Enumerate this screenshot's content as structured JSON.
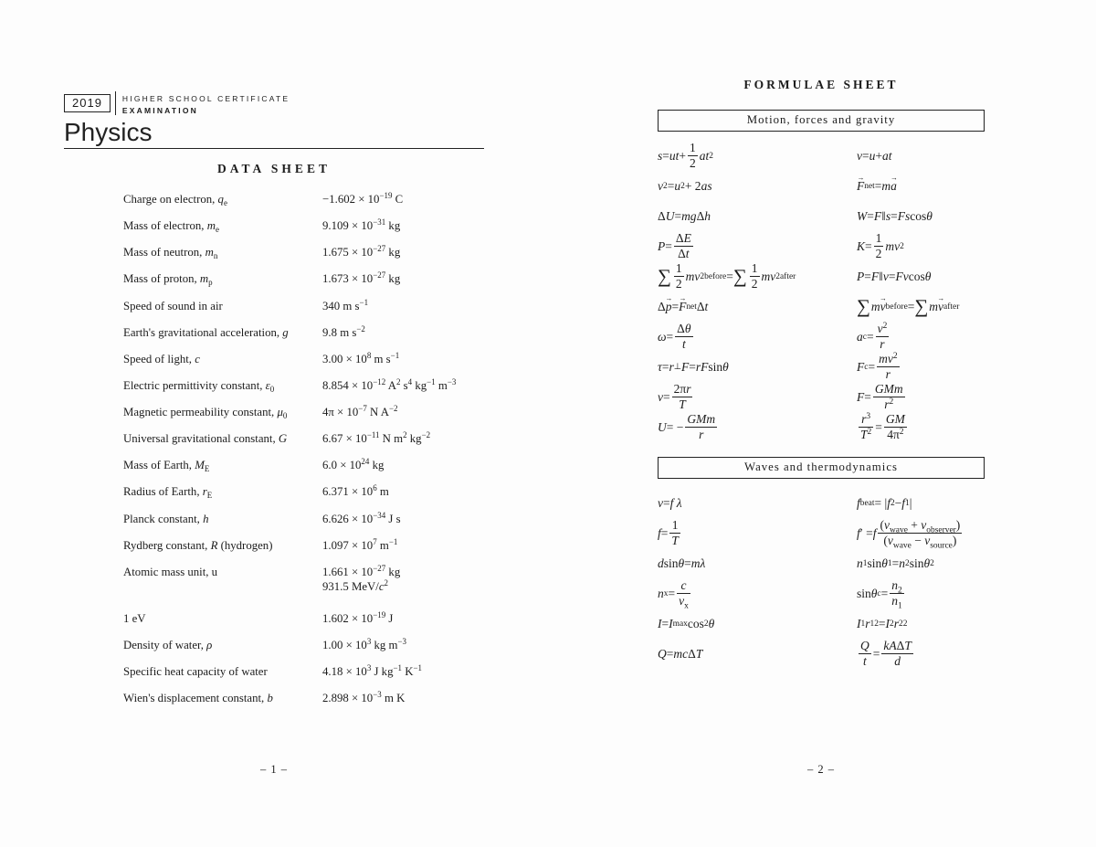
{
  "header": {
    "year": "2019",
    "cert_line1": "HIGHER SCHOOL CERTIFICATE",
    "cert_line2": "EXAMINATION",
    "subject": "Physics"
  },
  "datasheet": {
    "title": "DATA SHEET",
    "rows": [
      {
        "label": "Charge on electron, <i>q</i><sub>e</sub>",
        "value": "−1.602 × 10<sup>−19</sup> C"
      },
      {
        "label": "Mass of electron, <i>m</i><sub>e</sub>",
        "value": "9.109 × 10<sup>−31</sup> kg"
      },
      {
        "label": "Mass of neutron, <i>m</i><sub>n</sub>",
        "value": "1.675 × 10<sup>−27</sup> kg"
      },
      {
        "label": "Mass of proton, <i>m</i><sub>p</sub>",
        "value": "1.673 × 10<sup>−27</sup> kg"
      },
      {
        "label": "Speed of sound in air",
        "value": "340 m s<sup>−1</sup>"
      },
      {
        "label": "Earth's gravitational acceleration, <i>g</i>",
        "value": "9.8 m s<sup>−2</sup>"
      },
      {
        "label": "Speed of light, <i>c</i>",
        "value": "3.00 × 10<sup>8</sup> m s<sup>−1</sup>"
      },
      {
        "label": "Electric permittivity constant, <i>ε</i><sub>0</sub>",
        "value": "8.854 × 10<sup>−12</sup> A<sup>2</sup> s<sup>4</sup> kg<sup>−1</sup> m<sup>−3</sup>"
      },
      {
        "label": "Magnetic permeability constant, <i>μ</i><sub>0</sub>",
        "value": "4π × 10<sup>−7</sup> N A<sup>−2</sup>"
      },
      {
        "label": "Universal gravitational constant, <i>G</i>",
        "value": "6.67 × 10<sup>−11</sup> N m<sup>2</sup> kg<sup>−2</sup>"
      },
      {
        "label": "Mass of Earth, <i>M</i><sub>E</sub>",
        "value": "6.0 × 10<sup>24</sup> kg"
      },
      {
        "label": "Radius of Earth, <i>r</i><sub>E</sub>",
        "value": "6.371 × 10<sup>6</sup> m"
      },
      {
        "label": "Planck constant, <i>h</i>",
        "value": "6.626 × 10<sup>−34</sup> J s"
      },
      {
        "label": "Rydberg constant, <i>R</i> (hydrogen)",
        "value": "1.097 × 10<sup>7</sup> m<sup>−1</sup>"
      },
      {
        "label": "Atomic mass unit, u",
        "value": "1.661 × 10<sup>−27</sup> kg<br>931.5 MeV/<i>c</i><sup>2</sup>"
      },
      {
        "label": "1 eV",
        "value": "1.602 × 10<sup>−19</sup> J"
      },
      {
        "label": "Density of water, <i>ρ</i>",
        "value": "1.00 × 10<sup>3</sup> kg m<sup>−3</sup>"
      },
      {
        "label": "Specific heat capacity of water",
        "value": "4.18 × 10<sup>3</sup> J kg<sup>−1</sup> K<sup>−1</sup>"
      },
      {
        "label": "Wien's displacement constant, <i>b</i>",
        "value": "2.898 × 10<sup>−3</sup> m K"
      }
    ]
  },
  "formulae": {
    "title": "FORMULAE SHEET",
    "sections": [
      {
        "heading": "Motion, forces and gravity",
        "left": [
          "<i>s</i> = <i>ut</i> + <span class='fr'><span class='nu'>1</span><span class='de'>2</span></span><i>at</i><sup>2</sup>",
          "<i>v</i><sup>2</sup> = <i>u</i><sup>2</sup> + 2<i>as</i>",
          "Δ<i>U</i> = <i>mg</i>Δ<i>h</i>",
          "<i>P</i> = <span class='fr'><span class='nu'>Δ<i>E</i></span><span class='de'>Δ<i>t</i></span></span>",
          "<span class='sm'>∑</span><span class='fr'><span class='nu'>1</span><span class='de'>2</span></span><i>mv</i><sup>2</sup><sub>before</sub> = <span class='sm'>∑</span><span class='fr'><span class='nu'>1</span><span class='de'>2</span></span><i>mv</i><sup>2</sup><sub>after</sub>",
          "Δ<span class='vec'><i>p</i></span> = <span class='vec'><i>F</i></span><sub>net</sub>Δ<i>t</i>",
          "<i>ω</i> = <span class='fr'><span class='nu'>Δ<i>θ</i></span><span class='de'><i>t</i></span></span>",
          "<i>τ</i> = <i>r</i><sub>⊥</sub><i>F</i> = <i>rF</i> sin<i>θ</i>",
          "<i>v</i> = <span class='fr'><span class='nu'>2π<i>r</i></span><span class='de'><i>T</i></span></span>",
          "<i>U</i> = −<span class='fr'><span class='nu'><i>GMm</i></span><span class='de'><i>r</i></span></span>"
        ],
        "right": [
          "<i>v</i> = <i>u</i> + <i>at</i>",
          "<span class='vec'><i>F</i></span><sub>net</sub> = <i>m</i><span class='vec'><i>a</i></span>",
          "<i>W</i> = <i>F</i><sub>∥</sub><i>s</i> = <i>Fs</i> cos<i>θ</i>",
          "<i>K</i> = <span class='fr'><span class='nu'>1</span><span class='de'>2</span></span><i>mv</i><sup>2</sup>",
          "<i>P</i> = <i>F</i><sub>∥</sub><i>v</i> = <i>Fv</i> cos<i>θ</i>",
          "<span class='sm'>∑</span><i>m</i><span class='vec'><i>v</i></span><sub>before</sub> = <span class='sm'>∑</span><i>m</i><span class='vec'><i>v</i></span><sub>after</sub>",
          "<i>a</i><sub>c</sub> = <span class='fr'><span class='nu'><i>v</i><sup>2</sup></span><span class='de'><i>r</i></span></span>",
          "<i>F</i><sub>c</sub> = <span class='fr'><span class='nu'><i>mv</i><sup>2</sup></span><span class='de'><i>r</i></span></span>",
          "<i>F</i> = <span class='fr'><span class='nu'><i>GMm</i></span><span class='de'><i>r</i><sup>2</sup></span></span>",
          "<span class='fr'><span class='nu'><i>r</i><sup>3</sup></span><span class='de'><i>T</i><sup>2</sup></span></span> = <span class='fr'><span class='nu'><i>GM</i></span><span class='de'>4π<sup>2</sup></span></span>"
        ]
      },
      {
        "heading": "Waves and thermodynamics",
        "left": [
          "<i>v</i> = <i>f λ</i>",
          "<i>f</i> = <span class='fr'><span class='nu'>1</span><span class='de'><i>T</i></span></span>",
          "<i>d</i> sin<i>θ</i> = <i>mλ</i>",
          "<i>n</i><sub>x</sub> = <span class='fr'><span class='nu'><i>c</i></span><span class='de'><i>v</i><sub>x</sub></span></span>",
          "<i>I</i> = <i>I</i><sub>max</sub> cos<sup>2</sup><i>θ</i>",
          "<i>Q</i> = <i>mc</i>Δ<i>T</i>"
        ],
        "right": [
          "<i>f</i><sub>beat</sub> = |<i>f</i><sub>2</sub> − <i>f</i><sub>1</sub>|",
          "<i>f</i>′ = <i>f</i> <span class='fr'><span class='nu'>(<i>v</i><sub>wave</sub> + <i>v</i><sub>observer</sub>)</span><span class='de'>(<i>v</i><sub>wave</sub> − <i>v</i><sub>source</sub>)</span></span>",
          "<i>n</i><sub>1</sub> sin<i>θ</i><sub>1</sub> = <i>n</i><sub>2</sub> sin<i>θ</i><sub>2</sub>",
          "sin<i>θ</i><sub>c</sub> = <span class='fr'><span class='nu'><i>n</i><sub>2</sub></span><span class='de'><i>n</i><sub>1</sub></span></span>",
          "<i>I</i><sub>1</sub><i>r</i><sub>1</sub><sup>2</sup> = <i>I</i><sub>2</sub><i>r</i><sub>2</sub><sup>2</sup>",
          "<span class='fr'><span class='nu'><i>Q</i></span><span class='de'><i>t</i></span></span> = <span class='fr'><span class='nu'><i>kA</i>Δ<i>T</i></span><span class='de'><i>d</i></span></span>"
        ]
      }
    ]
  },
  "pages": {
    "left_number": "– 1 –",
    "right_number": "– 2 –"
  }
}
